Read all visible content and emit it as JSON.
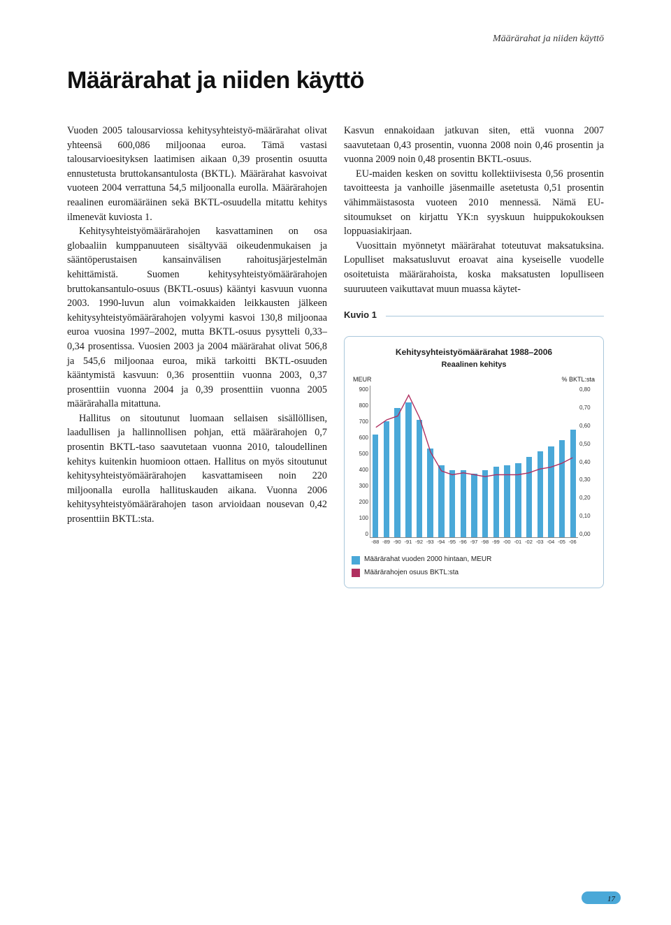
{
  "running_head": "Määrärahat ja niiden käyttö",
  "title": "Määrärahat ja niiden käyttö",
  "left_paragraphs": [
    "Vuoden 2005 talousarviossa kehitysyhteistyö-määrärahat olivat yhteensä 600,086 miljoonaa euroa. Tämä vastasi talousarvioesityksen laatimisen aikaan 0,39 prosentin osuutta ennustetusta bruttokansantulosta (BKTL). Määrärahat kasvoivat vuoteen 2004 verrattuna 54,5 miljoonalla eurolla. Määrärahojen reaalinen euromääräinen sekä BKTL-osuudella mitattu kehitys ilmenevät kuviosta 1.",
    "Kehitysyhteistyömäärärahojen kasvattaminen on osa globaaliin kumppanuuteen sisältyvää oikeudenmukaisen ja sääntöperustaisen kansainvälisen rahoitusjärjestelmän kehittämistä. Suomen kehitysyhteistyömäärärahojen bruttokansantulo-osuus (BKTL-osuus) kääntyi kasvuun vuonna 2003. 1990-luvun alun voimakkaiden leikkausten jälkeen kehitysyhteistyömäärärahojen volyymi kasvoi 130,8 miljoonaa euroa vuosina 1997–2002, mutta BKTL-osuus pysytteli 0,33–0,34 prosentissa. Vuosien 2003 ja 2004 määrärahat olivat 506,8 ja 545,6 miljoonaa euroa, mikä tarkoitti BKTL-osuuden kääntymistä kasvuun: 0,36 prosenttiin vuonna 2003, 0,37 prosenttiin vuonna 2004 ja 0,39 prosenttiin vuonna 2005 määrärahalla mitattuna.",
    "Hallitus on sitoutunut luomaan sellaisen sisällöllisen, laadullisen ja hallinnollisen pohjan, että määrärahojen 0,7 prosentin BKTL-taso saavutetaan vuonna 2010, taloudellinen kehitys kuitenkin huomioon ottaen. Hallitus on myös sitoutunut kehitysyhteistyömäärärahojen kasvattamiseen noin 220 miljoonalla eurolla hallituskauden aikana. Vuonna 2006 kehitysyhteistyömäärärahojen tason arvioidaan nousevan 0,42 prosenttiin BKTL:sta."
  ],
  "right_paragraphs": [
    "Kasvun ennakoidaan jatkuvan siten, että vuonna 2007 saavutetaan 0,43 prosentin, vuonna 2008 noin 0,46 prosentin ja vuonna 2009 noin 0,48 prosentin BKTL-osuus.",
    "EU-maiden kesken on sovittu kollektiivisesta 0,56 prosentin tavoitteesta ja vanhoille jäsenmaille asetetusta 0,51 prosentin vähimmäistasosta vuoteen 2010 mennessä. Nämä EU-sitoumukset on kirjattu YK:n syyskuun huippukokouksen loppuasiakirjaan.",
    "Vuosittain myönnetyt määrärahat toteutuvat maksatuksina. Lopulliset maksatusluvut eroavat aina kyseiselle vuodelle osoitetuista määrärahoista, koska maksatusten lopulliseen suuruuteen vaikuttavat muun muassa käytet-"
  ],
  "kuvio_label": "Kuvio 1",
  "chart": {
    "title": "Kehitysyhteistyömäärärahat 1988–2006",
    "subtitle": "Reaalinen kehitys",
    "y_left_label": "MEUR",
    "y_right_label": "% BKTL:sta",
    "y_left_ticks": [
      "900",
      "800",
      "700",
      "600",
      "500",
      "400",
      "300",
      "200",
      "100",
      "0"
    ],
    "y_right_ticks": [
      "0,80",
      "0,70",
      "0,60",
      "0,50",
      "0,40",
      "0,30",
      "0,20",
      "0,10",
      "0,00"
    ],
    "y_left_max": 900,
    "y_right_max": 0.8,
    "x_labels": [
      "-88",
      "-89",
      "-90",
      "-91",
      "-92",
      "-93",
      "-94",
      "-95",
      "-96",
      "-97",
      "-98",
      "-99",
      "-00",
      "-01",
      "-02",
      "-03",
      "-04",
      "-05",
      "-06"
    ],
    "bars": [
      610,
      690,
      770,
      800,
      700,
      530,
      430,
      400,
      400,
      380,
      400,
      420,
      430,
      440,
      480,
      510,
      540,
      580,
      640
    ],
    "line": [
      0.58,
      0.62,
      0.64,
      0.75,
      0.63,
      0.45,
      0.35,
      0.33,
      0.34,
      0.33,
      0.32,
      0.33,
      0.33,
      0.33,
      0.34,
      0.36,
      0.37,
      0.39,
      0.42
    ],
    "bar_color": "#4aa8d8",
    "line_color": "#b03060",
    "legend": [
      {
        "color": "#4aa8d8",
        "label": "Määrärahat vuoden 2000 hintaan, MEUR"
      },
      {
        "color": "#b03060",
        "label": "Määrärahojen osuus BKTL:sta"
      }
    ]
  },
  "page_number": "17"
}
